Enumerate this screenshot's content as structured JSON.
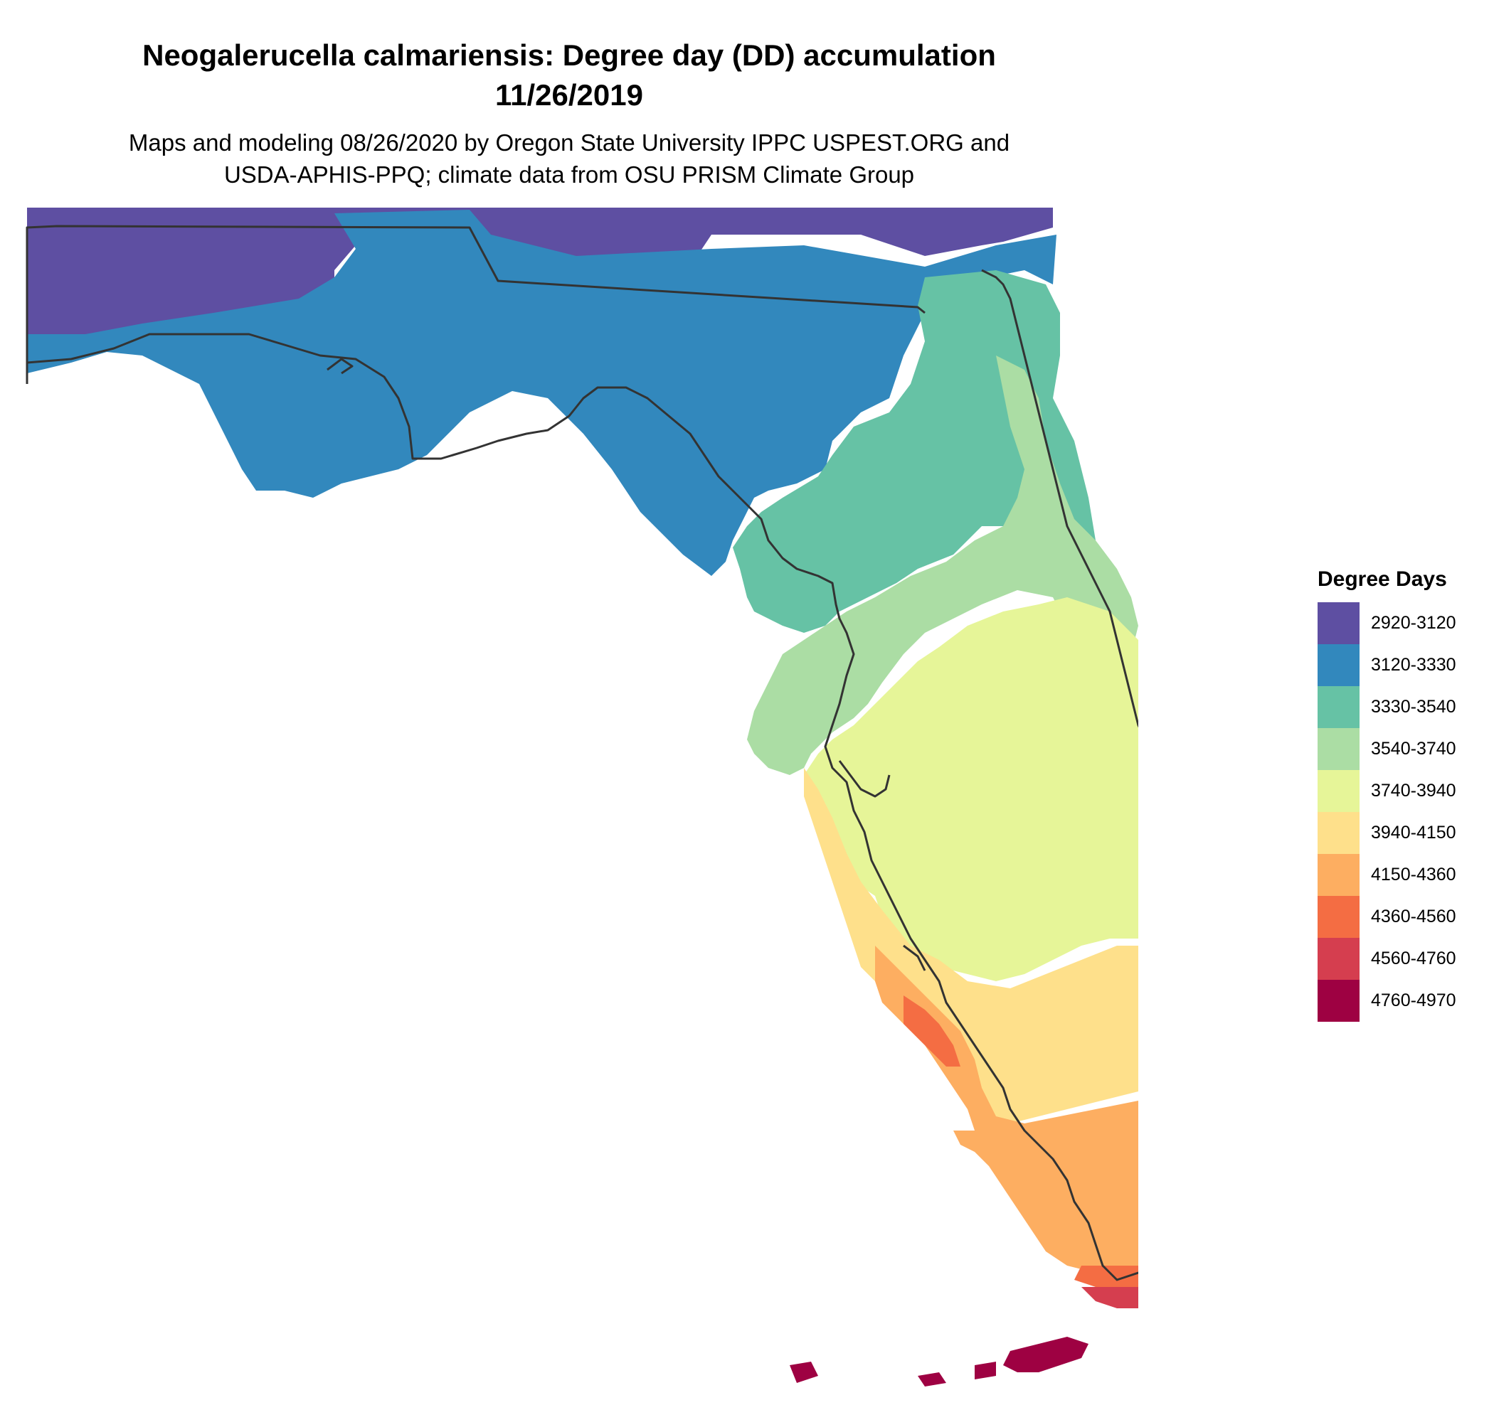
{
  "title_line1": "Neogalerucella calmariensis: Degree day (DD) accumulation",
  "title_line2": "11/26/2019",
  "subtitle_line1": "Maps and modeling 08/26/2020 by Oregon State University IPPC USPEST.ORG and",
  "subtitle_line2": "USDA-APHIS-PPQ; climate data from OSU PRISM Climate Group",
  "legend": {
    "title": "Degree Days",
    "items": [
      {
        "label": "2920-3120",
        "color": "#5e4fa2"
      },
      {
        "label": "3120-3330",
        "color": "#3288bd"
      },
      {
        "label": "3330-3540",
        "color": "#66c2a5"
      },
      {
        "label": "3540-3740",
        "color": "#abdda4"
      },
      {
        "label": "3740-3940",
        "color": "#e6f598"
      },
      {
        "label": "3940-4150",
        "color": "#fee08b"
      },
      {
        "label": "4150-4360",
        "color": "#fdae61"
      },
      {
        "label": "4360-4560",
        "color": "#f46d43"
      },
      {
        "label": "4560-4760",
        "color": "#d53e4f"
      },
      {
        "label": "4760-4970",
        "color": "#9e0142"
      }
    ]
  },
  "map": {
    "region": "Florida",
    "outline_color": "#333333"
  }
}
